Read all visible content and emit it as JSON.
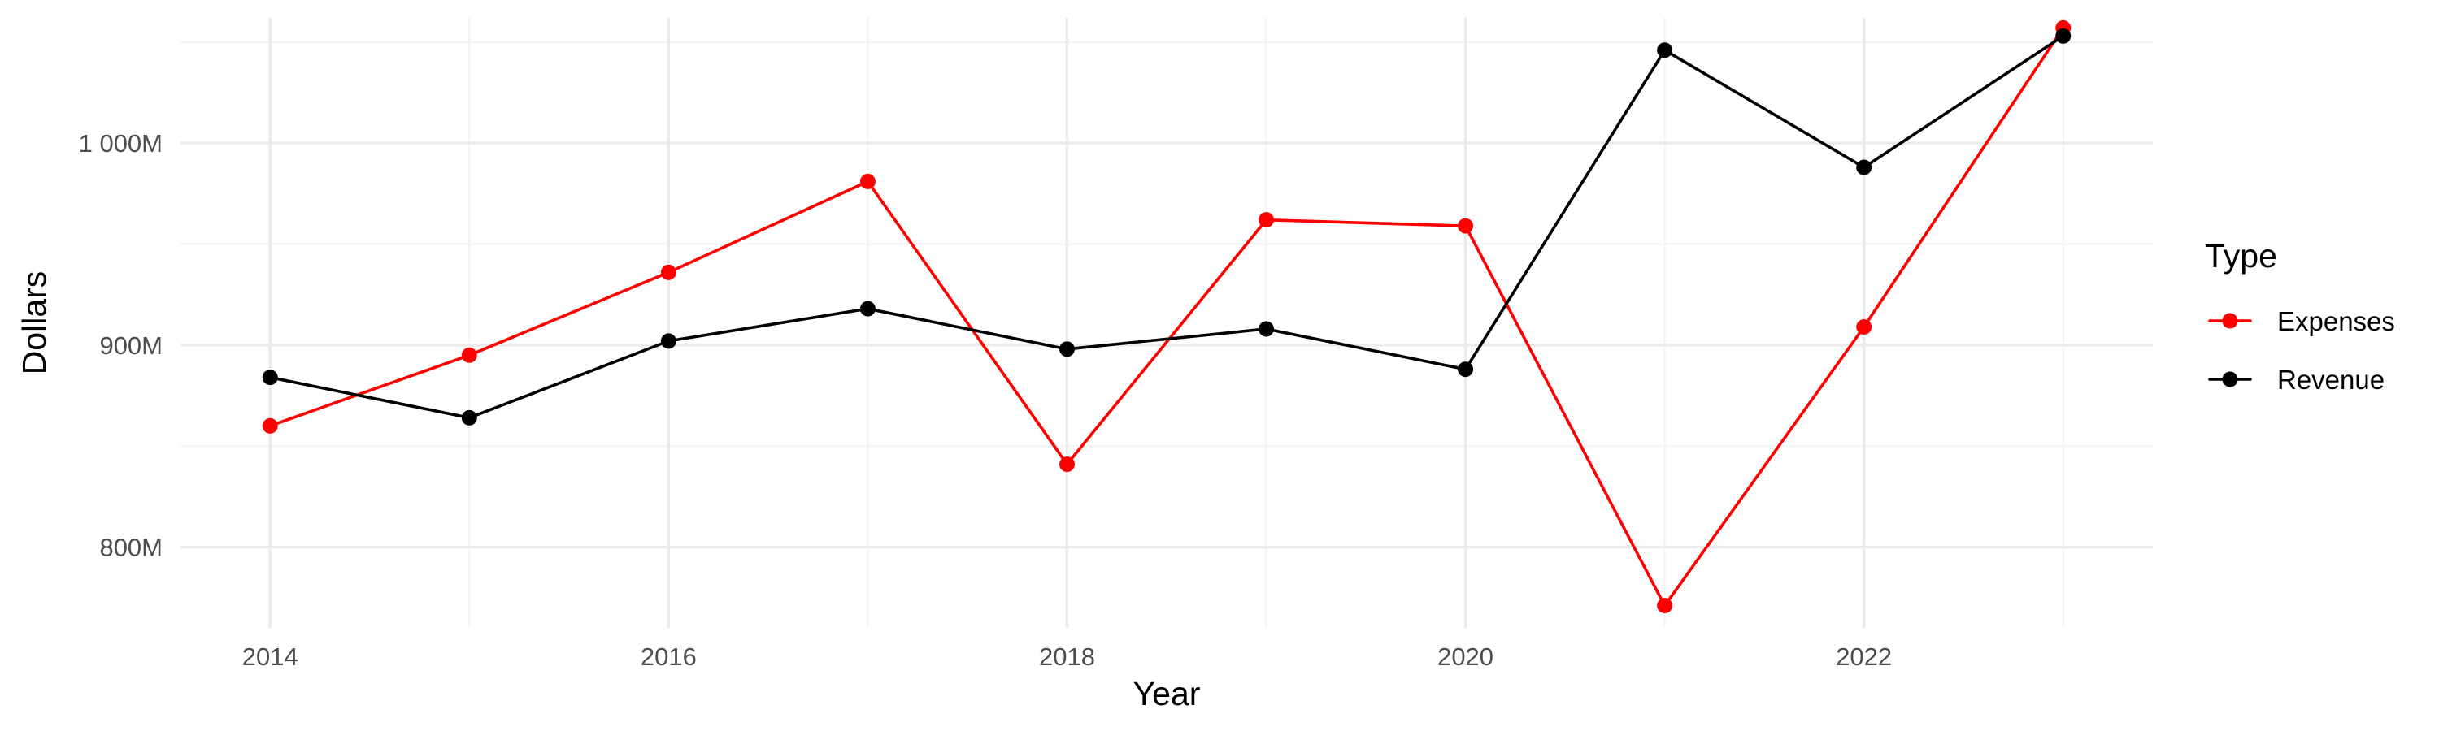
{
  "chart_data": {
    "type": "line",
    "title": "",
    "xlabel": "Year",
    "ylabel": "Dollars",
    "x": [
      2014,
      2015,
      2016,
      2017,
      2018,
      2019,
      2020,
      2021,
      2022,
      2023
    ],
    "xticks": [
      2014,
      2016,
      2018,
      2020,
      2022
    ],
    "xtick_labels": [
      "2014",
      "2016",
      "2018",
      "2020",
      "2022"
    ],
    "yticks": [
      800000000,
      900000000,
      1000000000
    ],
    "ytick_labels": [
      "800M",
      "900M",
      "1 000M"
    ],
    "xlim": [
      2013.55,
      2023.45
    ],
    "ylim": [
      760000000,
      1062000000
    ],
    "grid": true,
    "legend": {
      "title": "Type",
      "placement": "right"
    },
    "series": [
      {
        "name": "Expenses",
        "color": "#ff0000",
        "values": [
          860000000,
          895000000,
          936000000,
          981000000,
          841000000,
          962000000,
          959000000,
          771000000,
          909000000,
          1057000000
        ]
      },
      {
        "name": "Revenue",
        "color": "#000000",
        "values": [
          884000000,
          864000000,
          902000000,
          918000000,
          898000000,
          908000000,
          888000000,
          1046000000,
          988000000,
          1053000000
        ]
      }
    ]
  }
}
